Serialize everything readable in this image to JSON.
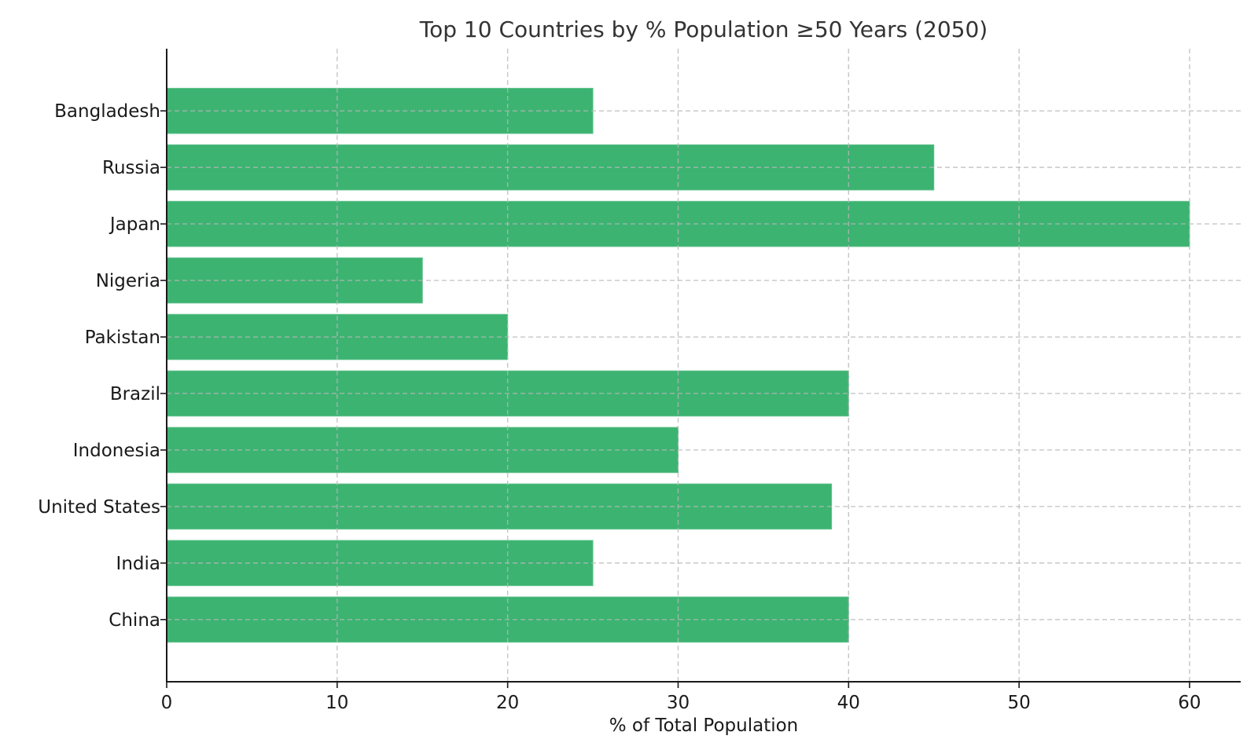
{
  "chart_data": {
    "type": "bar",
    "orientation": "horizontal",
    "title": "Top 10 Countries by % Population ≥50 Years (2050)",
    "xlabel": "% of Total Population",
    "ylabel": "",
    "categories": [
      "China",
      "India",
      "United States",
      "Indonesia",
      "Brazil",
      "Pakistan",
      "Nigeria",
      "Japan",
      "Russia",
      "Bangladesh"
    ],
    "values": [
      40,
      25,
      39,
      30,
      40,
      20,
      15,
      60,
      45,
      25
    ],
    "xlim": [
      0,
      63
    ],
    "xticks": [
      0,
      10,
      20,
      30,
      40,
      50,
      60
    ],
    "xtick_labels": [
      "0",
      "10",
      "20",
      "30",
      "40",
      "50",
      "60"
    ],
    "grid": true,
    "grid_style": "dashed",
    "bar_color": "#3cb371",
    "legend": null
  }
}
